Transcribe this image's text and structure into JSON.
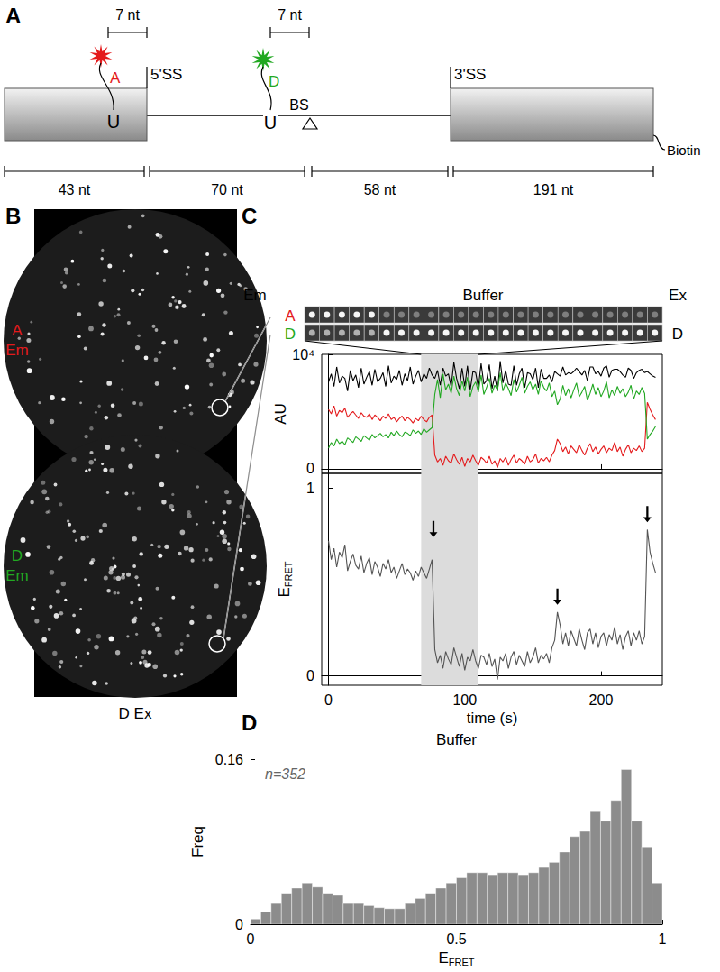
{
  "panels": [
    "A",
    "B",
    "C",
    "D"
  ],
  "schematic": {
    "spacing": [
      "7 nt",
      "7 nt"
    ],
    "acceptor": {
      "text": "A",
      "color": "#e41a1c"
    },
    "donor": {
      "text": "D",
      "color": "#22a822"
    },
    "u": [
      "U",
      "U"
    ],
    "splice_sites": [
      "5'SS",
      "3'SS"
    ],
    "branch_site": "BS",
    "tag": "Biotin",
    "lengths": [
      "43 nt",
      "70 nt",
      "58 nt",
      "191 nt"
    ]
  },
  "image": {
    "rows": [
      {
        "text": [
          "A",
          "Em"
        ],
        "color": "#e41a1c"
      },
      {
        "text": [
          "D",
          "Em"
        ],
        "color": "#22a822"
      }
    ],
    "excitation": "D Ex"
  },
  "strip": {
    "left": "Em",
    "middle": "Buffer",
    "right": "Ex",
    "rows": [
      {
        "text": "A",
        "color": "#e41a1c"
      },
      {
        "text": "D",
        "color": "#22a822"
      }
    ],
    "excitation": "D"
  },
  "chart_data": [
    {
      "type": "line",
      "ylabel": "AU",
      "x": [
        0,
        2,
        4,
        6,
        8,
        10,
        12,
        14,
        16,
        18,
        20,
        22,
        24,
        26,
        28,
        30,
        32,
        34,
        36,
        38,
        40,
        42,
        44,
        46,
        48,
        50,
        52,
        54,
        56,
        58,
        60,
        62,
        64,
        66,
        68,
        70,
        72,
        74,
        76,
        78,
        80,
        82,
        84,
        86,
        88,
        90,
        92,
        94,
        96,
        98,
        100,
        102,
        104,
        106,
        108,
        110,
        112,
        114,
        116,
        118,
        120,
        122,
        124,
        126,
        128,
        130,
        132,
        134,
        136,
        138,
        140,
        142,
        144,
        146,
        148,
        150,
        152,
        154,
        156,
        158,
        160,
        162,
        164,
        166,
        168,
        170,
        172,
        174,
        176,
        178,
        180,
        182,
        184,
        186,
        188,
        190,
        192,
        194,
        196,
        198,
        200,
        202,
        204,
        206,
        208,
        210,
        212,
        214,
        216,
        218,
        220,
        222,
        224,
        226,
        228,
        230,
        232,
        234,
        236,
        238,
        240
      ],
      "series": [
        {
          "color": "#000000",
          "values": [
            7600,
            8300,
            7200,
            8900,
            7500,
            8100,
            7900,
            6800,
            8600,
            7700,
            8200,
            7100,
            8800,
            7400,
            8000,
            8500,
            7300,
            8700,
            7600,
            7900,
            8400,
            7200,
            9000,
            7500,
            8100,
            7800,
            8600,
            7300,
            8300,
            7700,
            8900,
            7400,
            8100,
            8600,
            7600,
            8300,
            7900,
            8800,
            8200,
            7900,
            8600,
            7300,
            8800,
            8100,
            8300,
            7200,
            9300,
            7900,
            7000,
            8800,
            7200,
            9000,
            6900,
            8500,
            8400,
            7100,
            9200,
            7400,
            7700,
            9100,
            7000,
            8100,
            6800,
            9400,
            7500,
            8600,
            7400,
            7300,
            9000,
            7300,
            8300,
            8800,
            7100,
            8400,
            8300,
            7800,
            8800,
            7100,
            8700,
            7900,
            7900,
            8200,
            7600,
            8500,
            8300,
            8100,
            8900,
            8200,
            8400,
            8300,
            8500,
            8800,
            8500,
            8200,
            8600,
            7700,
            8900,
            8900,
            8300,
            8500,
            8100,
            8800,
            9000,
            8000,
            8600,
            8700,
            8700,
            8500,
            8200,
            8000,
            8800,
            8600,
            7900,
            8400,
            8600,
            8700,
            8400,
            8500,
            8300,
            8100,
            8000
          ]
        },
        {
          "color": "#e41a1c",
          "values": [
            5200,
            4800,
            5500,
            4600,
            5100,
            4900,
            5300,
            4500,
            4800,
            5000,
            4700,
            4400,
            4900,
            4600,
            4500,
            4800,
            4300,
            4700,
            4500,
            4200,
            4600,
            4400,
            4800,
            4300,
            4500,
            4100,
            4400,
            4600,
            4200,
            4500,
            4300,
            4000,
            4400,
            4200,
            4600,
            4300,
            4100,
            4500,
            4700,
            1200,
            600,
            900,
            300,
            1100,
            700,
            500,
            1300,
            800,
            400,
            1000,
            200,
            900,
            600,
            1200,
            700,
            300,
            1000,
            800,
            500,
            1100,
            400,
            700,
            100,
            900,
            600,
            1000,
            300,
            800,
            1200,
            500,
            900,
            700,
            400,
            1100,
            600,
            800,
            1300,
            500,
            900,
            700,
            1000,
            600,
            1200,
            1600,
            2600,
            2200,
            1500,
            1900,
            1300,
            2000,
            1700,
            1400,
            2100,
            1600,
            1200,
            1800,
            2200,
            1500,
            1900,
            1300,
            1700,
            2000,
            1400,
            1800,
            1600,
            2300,
            1500,
            1900,
            1100,
            1700,
            2100,
            1400,
            1800,
            1600,
            2000,
            1500,
            1800,
            5800,
            5200,
            4700,
            4300
          ]
        },
        {
          "color": "#22a822",
          "values": [
            1800,
            2300,
            2000,
            2600,
            2200,
            2400,
            2100,
            2700,
            2500,
            2300,
            2800,
            2600,
            2400,
            2900,
            2700,
            2500,
            3000,
            2700,
            2900,
            3100,
            2800,
            3000,
            2700,
            3200,
            2900,
            3300,
            3000,
            2800,
            3200,
            3100,
            2900,
            3400,
            3100,
            3300,
            3000,
            3500,
            3200,
            3400,
            3600,
            6500,
            7800,
            6200,
            8300,
            6900,
            7400,
            6600,
            8100,
            7000,
            6400,
            7700,
            6800,
            8000,
            6300,
            7200,
            7600,
            6700,
            8200,
            6500,
            7100,
            7900,
            6600,
            7300,
            6900,
            8400,
            6800,
            7500,
            7000,
            6400,
            7800,
            6700,
            7300,
            8000,
            6600,
            7200,
            7600,
            6900,
            7400,
            6500,
            7700,
            7100,
            6800,
            7500,
            6300,
            6800,
            5600,
            6100,
            7300,
            6400,
            7000,
            6200,
            6900,
            7500,
            6300,
            6700,
            7200,
            6000,
            6600,
            7400,
            6500,
            7100,
            6300,
            6800,
            7600,
            6200,
            6900,
            6400,
            7200,
            6600,
            7000,
            6300,
            6700,
            7300,
            6100,
            6800,
            6500,
            7100,
            6600,
            2600,
            3000,
            3300,
            3700
          ]
        }
      ],
      "shaded": [
        68,
        110
      ],
      "xlim": [
        -5,
        245
      ],
      "xticks": [
        0,
        100,
        200
      ],
      "ylim": [
        -400,
        10000
      ],
      "yticks": [
        0,
        {
          "value": 10000,
          "label": "10⁴"
        }
      ],
      "tick_labels": "y"
    },
    {
      "type": "line",
      "xlabel": "time (s)",
      "ylabel": {
        "base": "E",
        "sub": "FRET"
      },
      "x": [
        0,
        2,
        4,
        6,
        8,
        10,
        12,
        14,
        16,
        18,
        20,
        22,
        24,
        26,
        28,
        30,
        32,
        34,
        36,
        38,
        40,
        42,
        44,
        46,
        48,
        50,
        52,
        54,
        56,
        58,
        60,
        62,
        64,
        66,
        68,
        70,
        72,
        74,
        76,
        78,
        80,
        82,
        84,
        86,
        88,
        90,
        92,
        94,
        96,
        98,
        100,
        102,
        104,
        106,
        108,
        110,
        112,
        114,
        116,
        118,
        120,
        122,
        124,
        126,
        128,
        130,
        132,
        134,
        136,
        138,
        140,
        142,
        144,
        146,
        148,
        150,
        152,
        154,
        156,
        158,
        160,
        162,
        164,
        166,
        168,
        170,
        172,
        174,
        176,
        178,
        180,
        182,
        184,
        186,
        188,
        190,
        192,
        194,
        196,
        198,
        200,
        202,
        204,
        206,
        208,
        210,
        212,
        214,
        216,
        218,
        220,
        222,
        224,
        226,
        228,
        230,
        232,
        234,
        236,
        238,
        240
      ],
      "series": [
        {
          "color": "#555555",
          "values": [
            0.72,
            0.62,
            0.68,
            0.58,
            0.66,
            0.63,
            0.7,
            0.56,
            0.61,
            0.65,
            0.59,
            0.57,
            0.64,
            0.55,
            0.6,
            0.63,
            0.54,
            0.61,
            0.58,
            0.53,
            0.6,
            0.57,
            0.62,
            0.55,
            0.58,
            0.52,
            0.56,
            0.6,
            0.54,
            0.57,
            0.55,
            0.51,
            0.56,
            0.53,
            0.58,
            0.55,
            0.52,
            0.57,
            0.62,
            0.14,
            0.07,
            0.11,
            0.04,
            0.13,
            0.09,
            0.06,
            0.15,
            0.1,
            0.05,
            0.12,
            0.03,
            0.1,
            0.08,
            0.14,
            0.08,
            0.04,
            0.11,
            0.1,
            0.06,
            0.12,
            0.05,
            0.09,
            -0.02,
            0.1,
            0.08,
            0.12,
            0.04,
            0.1,
            0.13,
            0.06,
            0.11,
            0.08,
            0.05,
            0.13,
            0.07,
            0.1,
            0.15,
            0.07,
            0.11,
            0.09,
            0.12,
            0.07,
            0.15,
            0.19,
            0.34,
            0.27,
            0.17,
            0.23,
            0.16,
            0.24,
            0.2,
            0.16,
            0.25,
            0.19,
            0.14,
            0.23,
            0.25,
            0.17,
            0.23,
            0.15,
            0.21,
            0.23,
            0.16,
            0.22,
            0.19,
            0.26,
            0.17,
            0.22,
            0.14,
            0.21,
            0.24,
            0.16,
            0.23,
            0.19,
            0.24,
            0.17,
            0.21,
            0.78,
            0.66,
            0.6,
            0.55
          ]
        }
      ],
      "shaded": [
        68,
        110
      ],
      "arrows": [
        {
          "x": 77,
          "y": 0.72
        },
        {
          "x": 168,
          "y": 0.36
        },
        {
          "x": 234,
          "y": 0.8
        }
      ],
      "xlim": [
        -5,
        245
      ],
      "xticks": [
        0,
        100,
        200
      ],
      "ylim": [
        -0.05,
        1.08
      ],
      "yticks": [
        0,
        1
      ]
    },
    {
      "type": "histogram",
      "title": "Buffer",
      "annotation": "n=352",
      "xlabel": {
        "base": "E",
        "sub": "FRET"
      },
      "ylabel": "Freq",
      "color": "#8c8c8c",
      "bins": [
        0,
        0.025,
        0.05,
        0.075,
        0.1,
        0.125,
        0.15,
        0.175,
        0.2,
        0.225,
        0.25,
        0.275,
        0.3,
        0.325,
        0.35,
        0.375,
        0.4,
        0.425,
        0.45,
        0.475,
        0.5,
        0.525,
        0.55,
        0.575,
        0.6,
        0.625,
        0.65,
        0.675,
        0.7,
        0.725,
        0.75,
        0.775,
        0.8,
        0.825,
        0.85,
        0.875,
        0.9,
        0.925,
        0.95,
        0.975,
        1
      ],
      "counts": [
        0.005,
        0.012,
        0.02,
        0.03,
        0.035,
        0.04,
        0.036,
        0.03,
        0.028,
        0.02,
        0.02,
        0.018,
        0.016,
        0.015,
        0.015,
        0.02,
        0.025,
        0.03,
        0.035,
        0.04,
        0.045,
        0.05,
        0.05,
        0.048,
        0.05,
        0.05,
        0.048,
        0.05,
        0.055,
        0.06,
        0.07,
        0.085,
        0.09,
        0.11,
        0.1,
        0.12,
        0.15,
        0.1,
        0.075,
        0.04
      ],
      "xlim": [
        0,
        1
      ],
      "xticks": [
        0,
        0.5,
        1
      ],
      "ylim": [
        0,
        0.16
      ],
      "yticks": [
        0,
        0.16
      ]
    }
  ]
}
